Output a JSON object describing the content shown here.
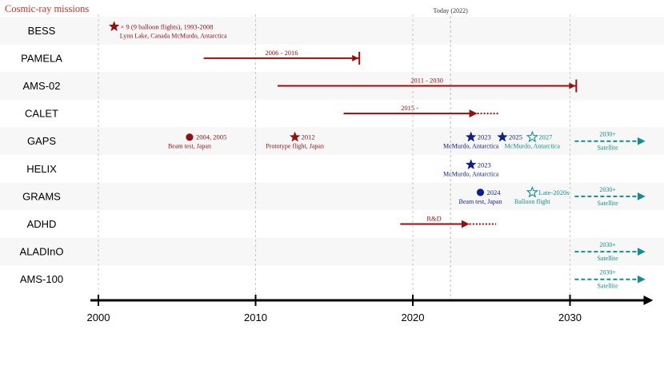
{
  "chart_data": {
    "type": "timeline",
    "title": "Cosmic-ray missions",
    "xlim": [
      2000,
      2035
    ],
    "x_ticks": [
      2000,
      2010,
      2020,
      2030
    ],
    "grid_years": [
      2000,
      2010,
      2020,
      2030
    ],
    "today": {
      "year": 2022.4,
      "label": "Today (2022)"
    },
    "colors": {
      "past": "#9b0d0d",
      "title": "#e8291c",
      "current": "#0d1f8f",
      "future": "#11908f",
      "axis": "#000000",
      "grid": "#bbbbbb",
      "stripe": "#f7f7f7"
    },
    "missions": [
      {
        "name": "BESS",
        "events": [
          {
            "kind": "star",
            "filled": true,
            "year": 2001,
            "color": "past",
            "label": "× 9 (9 balloon flights), 1993-2008",
            "sublabel": "Lynn Lake, Canada   McMurdo, Antarctica"
          }
        ]
      },
      {
        "name": "PAMELA",
        "events": [
          {
            "kind": "range",
            "start": 2006.7,
            "end": 2016.6,
            "end_style": "bar",
            "color": "past",
            "label": "2006 - 2016"
          }
        ]
      },
      {
        "name": "AMS-02",
        "events": [
          {
            "kind": "range",
            "start": 2011.4,
            "end": 2030.4,
            "end_style": "bar",
            "color": "past",
            "label": "2011 - 2030"
          }
        ]
      },
      {
        "name": "CALET",
        "events": [
          {
            "kind": "range",
            "start": 2015.6,
            "end": 2024.0,
            "dotted_to": 2025.5,
            "color": "past",
            "label": "2015 -"
          }
        ]
      },
      {
        "name": "GAPS",
        "events": [
          {
            "kind": "circle",
            "year": 2005.8,
            "color": "past",
            "label": "2004, 2005",
            "sublabel": "Beam test, Japan"
          },
          {
            "kind": "star",
            "filled": true,
            "year": 2012.5,
            "color": "past",
            "label": "2012",
            "sublabel": "Prototype flight, Japan"
          },
          {
            "kind": "star",
            "filled": true,
            "year": 2023.7,
            "color": "current",
            "label": "2023",
            "sublabel": "McMurdo, Antarctica"
          },
          {
            "kind": "star",
            "filled": true,
            "year": 2025.7,
            "color": "current",
            "label": "2025",
            "sublabel": ""
          },
          {
            "kind": "star",
            "filled": false,
            "year": 2027.6,
            "color": "future",
            "label": "2027",
            "sublabel": "McMurdo, Antarctica"
          },
          {
            "kind": "future",
            "start": 2030.3,
            "end": 2035,
            "color": "future",
            "label": "2030+",
            "sublabel": "Satellite"
          }
        ]
      },
      {
        "name": "HELIX",
        "events": [
          {
            "kind": "star",
            "filled": true,
            "year": 2023.7,
            "color": "current",
            "label": "2023",
            "sublabel": "McMurdo, Antarctica"
          }
        ]
      },
      {
        "name": "GRAMS",
        "events": [
          {
            "kind": "circle",
            "year": 2024.3,
            "color": "current",
            "label": "2024",
            "sublabel": "Beam test, Japan"
          },
          {
            "kind": "star",
            "filled": false,
            "year": 2027.6,
            "color": "future",
            "label": "Late-2020s",
            "sublabel": "Balloon flight"
          },
          {
            "kind": "future",
            "start": 2030.3,
            "end": 2035,
            "color": "future",
            "label": "2030+",
            "sublabel": "Satellite"
          }
        ]
      },
      {
        "name": "ADHD",
        "events": [
          {
            "kind": "range",
            "start": 2019.2,
            "end": 2023.5,
            "dotted_to": 2025.3,
            "color": "past",
            "label": "R&D"
          }
        ]
      },
      {
        "name": "ALADInO",
        "events": [
          {
            "kind": "future",
            "start": 2030.3,
            "end": 2035,
            "color": "future",
            "label": "2030+",
            "sublabel": "Satellite"
          }
        ]
      },
      {
        "name": "AMS-100",
        "events": [
          {
            "kind": "future",
            "start": 2030.3,
            "end": 2035,
            "color": "future",
            "label": "2030+",
            "sublabel": "Satellite"
          }
        ]
      }
    ]
  }
}
